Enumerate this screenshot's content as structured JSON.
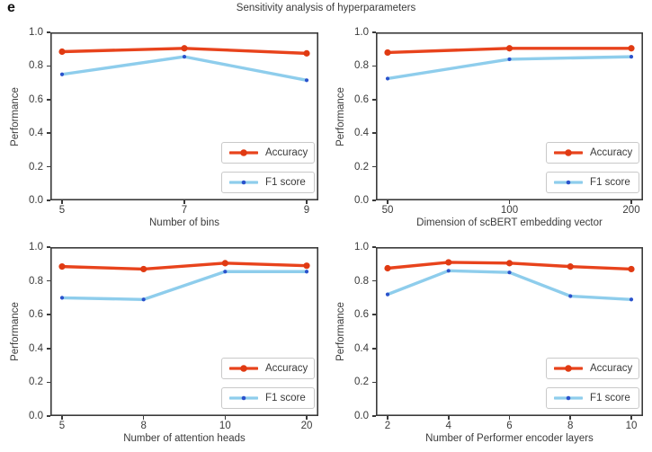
{
  "panel_label": "e",
  "title": "Sensitivity analysis of hyperparameters",
  "colors": {
    "accuracy_line": "#e8431c",
    "accuracy_marker": "#e03a12",
    "f1_line": "#8ecdec",
    "f1_marker": "#2a52cc",
    "axis": "#3a3a3a",
    "text": "#3a3a3a",
    "legend_border": "#c9c9c9",
    "background": "#ffffff"
  },
  "legend": {
    "labels": [
      "Accuracy",
      "F1 score"
    ],
    "position": "lower right"
  },
  "axes": {
    "ylabel": "Performance",
    "ylim": [
      0.0,
      1.0
    ],
    "ytick_labels": [
      "0.0",
      "0.2",
      "0.4",
      "0.6",
      "0.8",
      "1.0"
    ]
  },
  "chart_data": [
    {
      "type": "line",
      "title": "",
      "xlabel": "Number of bins",
      "ylabel": "Performance",
      "categories": [
        "5",
        "7",
        "9"
      ],
      "ylim": [
        0.0,
        1.0
      ],
      "series": [
        {
          "name": "Accuracy",
          "values": [
            0.885,
            0.905,
            0.875
          ]
        },
        {
          "name": "F1 score",
          "values": [
            0.75,
            0.855,
            0.715
          ]
        }
      ]
    },
    {
      "type": "line",
      "title": "",
      "xlabel": "Dimension of scBERT embedding vector",
      "ylabel": "Performance",
      "categories": [
        "50",
        "100",
        "200"
      ],
      "ylim": [
        0.0,
        1.0
      ],
      "series": [
        {
          "name": "Accuracy",
          "values": [
            0.88,
            0.905,
            0.905
          ]
        },
        {
          "name": "F1 score",
          "values": [
            0.725,
            0.84,
            0.855
          ]
        }
      ]
    },
    {
      "type": "line",
      "title": "",
      "xlabel": "Number of attention heads",
      "ylabel": "Performance",
      "categories": [
        "5",
        "8",
        "10",
        "20"
      ],
      "ylim": [
        0.0,
        1.0
      ],
      "series": [
        {
          "name": "Accuracy",
          "values": [
            0.885,
            0.87,
            0.905,
            0.89
          ]
        },
        {
          "name": "F1 score",
          "values": [
            0.7,
            0.69,
            0.855,
            0.855
          ]
        }
      ]
    },
    {
      "type": "line",
      "title": "",
      "xlabel": "Number of Performer encoder layers",
      "ylabel": "Performance",
      "categories": [
        "2",
        "4",
        "6",
        "8",
        "10"
      ],
      "ylim": [
        0.0,
        1.0
      ],
      "series": [
        {
          "name": "Accuracy",
          "values": [
            0.875,
            0.91,
            0.905,
            0.885,
            0.87
          ]
        },
        {
          "name": "F1 score",
          "values": [
            0.72,
            0.86,
            0.85,
            0.71,
            0.69
          ]
        }
      ]
    }
  ]
}
